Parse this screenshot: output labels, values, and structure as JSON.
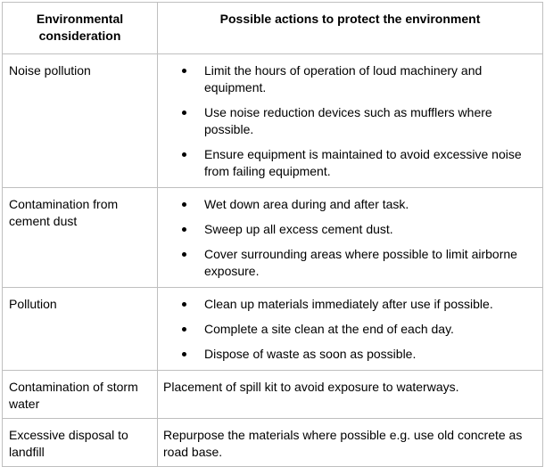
{
  "table": {
    "headers": [
      "Environmental consideration",
      "Possible actions to protect the environment"
    ],
    "rows": [
      {
        "consideration": "Noise pollution",
        "actions": [
          "Limit the hours of operation of loud machinery and equipment.",
          "Use noise reduction devices such as mufflers where possible.",
          "Ensure equipment is maintained to avoid excessive noise from failing equipment."
        ]
      },
      {
        "consideration": "Contamination from cement dust",
        "actions": [
          "Wet down area during and after task.",
          "Sweep up all excess cement dust.",
          "Cover surrounding areas where possible to limit airborne exposure."
        ]
      },
      {
        "consideration": "Pollution",
        "actions": [
          "Clean up materials immediately after use if possible.",
          "Complete a site clean at the end of each day.",
          "Dispose of waste as soon as possible."
        ]
      },
      {
        "consideration": "Contamination of storm water",
        "action_text": "Placement of spill kit to avoid exposure to waterways."
      },
      {
        "consideration": "Excessive disposal to landfill",
        "action_text": "Repurpose the materials where possible e.g. use old concrete as road base."
      }
    ]
  }
}
